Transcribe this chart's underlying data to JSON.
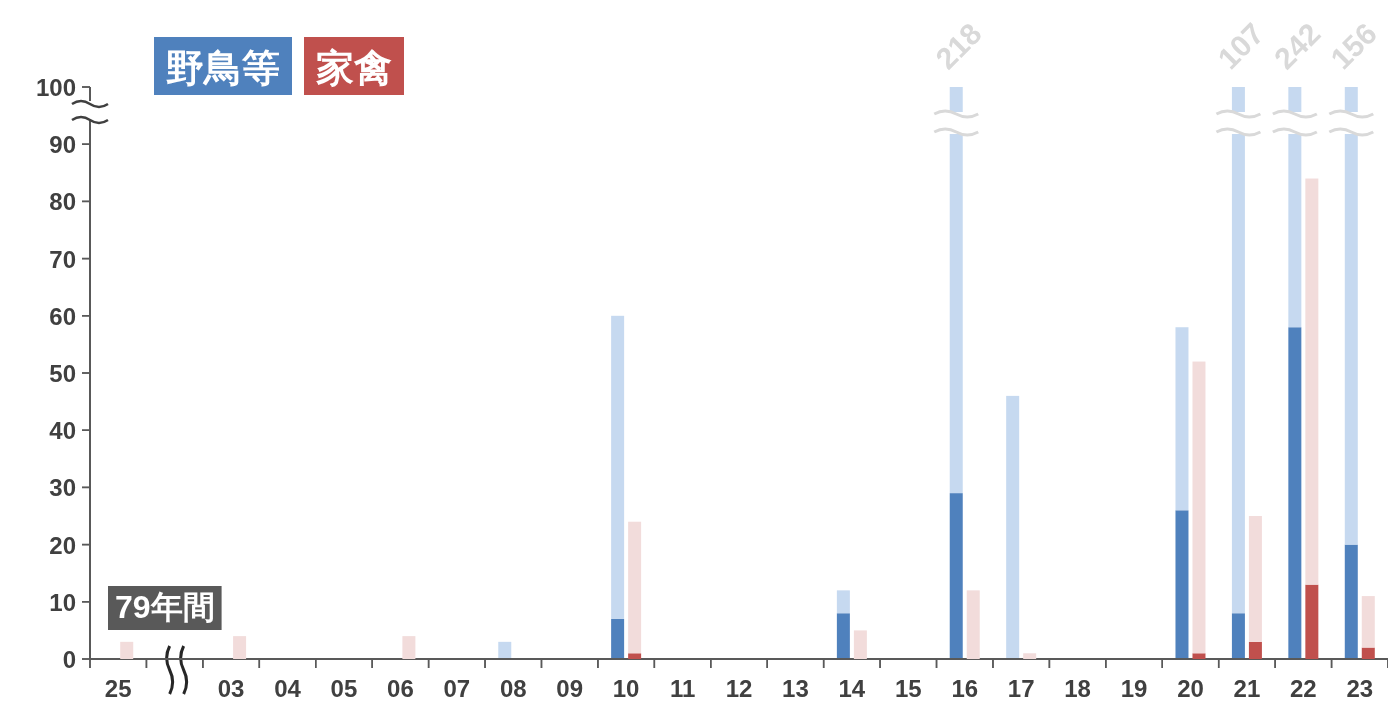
{
  "chart_data": [
    {
      "type": "bar",
      "stacked": true,
      "categories": [
        "25",
        null,
        "03",
        "04",
        "05",
        "06",
        "07",
        "08",
        "09",
        "10",
        "11",
        "12",
        "13",
        "14",
        "15",
        "16",
        "17",
        "18",
        "19",
        "20",
        "21",
        "22",
        "23"
      ],
      "series": [
        {
          "name": "野鳥等",
          "color": "#4f81bd",
          "values": [
            0,
            0,
            0,
            0,
            0,
            0,
            0,
            0,
            0,
            7,
            0,
            0,
            0,
            8,
            0,
            29,
            0,
            0,
            0,
            26,
            8,
            58,
            20
          ]
        },
        {
          "color": "#c6d9f0",
          "values": [
            0,
            0,
            0,
            0,
            0,
            0,
            0,
            3,
            0,
            53,
            0,
            0,
            0,
            4,
            0,
            71,
            46,
            0,
            0,
            32,
            92,
            42,
            80
          ]
        }
      ],
      "ylim": [
        0,
        100
      ],
      "yticks": [
        0,
        10,
        20,
        30,
        40,
        50,
        60,
        70,
        80,
        90,
        100
      ],
      "legend": "top left",
      "annotations": [
        "79年間",
        {
          "text": "218",
          "x": "16",
          "y": 100
        },
        {
          "text": "107",
          "x": "21",
          "y": 100
        },
        {
          "text": "242",
          "x": "22",
          "y": 100
        },
        {
          "text": "156",
          "x": "23",
          "y": 100
        }
      ]
    },
    {
      "type": "bar",
      "stacked": true,
      "categories": [
        "25",
        null,
        "03",
        "04",
        "05",
        "06",
        "07",
        "08",
        "09",
        "10",
        "11",
        "12",
        "13",
        "14",
        "15",
        "16",
        "17",
        "18",
        "19",
        "20",
        "21",
        "22",
        "23"
      ],
      "series": [
        {
          "name": "家禽",
          "color": "#c0504d",
          "values": [
            0,
            0,
            0,
            0,
            0,
            0,
            0,
            0,
            0,
            1,
            0,
            0,
            0,
            0,
            0,
            0,
            0,
            0,
            0,
            1,
            3,
            13,
            2
          ]
        },
        {
          "color": "#f2dcdb",
          "values": [
            3,
            0,
            4,
            0,
            0,
            4,
            0,
            0,
            0,
            23,
            0,
            0,
            0,
            5,
            0,
            12,
            1,
            0,
            0,
            51,
            22,
            71,
            9
          ]
        }
      ],
      "ylim": [
        0,
        100
      ],
      "yticks": [
        0,
        10,
        20,
        30,
        40,
        50,
        60,
        70,
        80,
        90,
        100
      ],
      "legend": "top left",
      "tick_labels": false
    }
  ]
}
